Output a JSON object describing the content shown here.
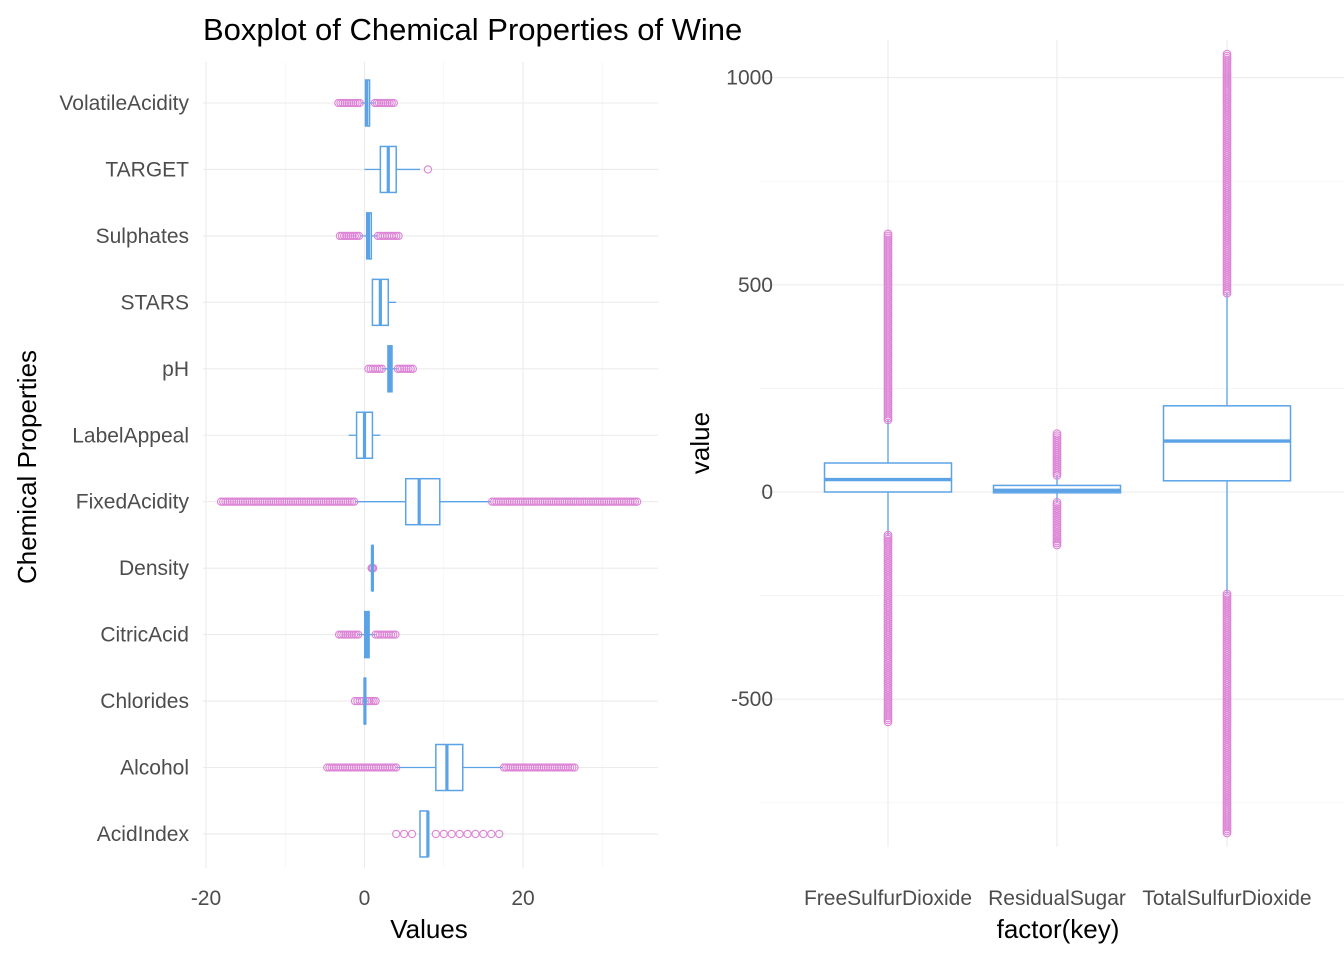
{
  "title": "Boxplot of Chemical Properties of Wine",
  "colors": {
    "box": "#5ba3e6",
    "outlier": "#dd85d6",
    "grid": "#ebebeb"
  },
  "chart_data": [
    {
      "type": "boxplot",
      "orientation": "horizontal",
      "xlabel": "Values",
      "ylabel": "Chemical Properties",
      "xlim": [
        -20,
        35
      ],
      "xticks": [
        -20,
        0,
        20
      ],
      "xtick_labels": [
        "-20",
        "0",
        "20"
      ],
      "grid": true,
      "categories": [
        "VolatileAcidity",
        "TARGET",
        "Sulphates",
        "STARS",
        "pH",
        "LabelAppeal",
        "FixedAcidity",
        "Density",
        "CitricAcid",
        "Chlorides",
        "Alcohol",
        "AcidIndex"
      ],
      "boxes": [
        {
          "name": "VolatileAcidity",
          "q1": 0.13,
          "median": 0.28,
          "q3": 0.64,
          "whisker_low": -0.5,
          "whisker_high": 1.3,
          "outlier_low": [
            -3.3,
            -0.6
          ],
          "outlier_high": [
            1.3,
            3.7
          ]
        },
        {
          "name": "TARGET",
          "q1": 2,
          "median": 3,
          "q3": 4,
          "whisker_low": 0,
          "whisker_high": 7,
          "outlier_points": [
            8
          ]
        },
        {
          "name": "Sulphates",
          "q1": 0.28,
          "median": 0.5,
          "q3": 0.86,
          "whisker_low": -0.6,
          "whisker_high": 1.7,
          "outlier_low": [
            -3.1,
            -0.7
          ],
          "outlier_high": [
            1.7,
            4.3
          ]
        },
        {
          "name": "STARS",
          "q1": 1,
          "median": 2,
          "q3": 3,
          "whisker_low": 1,
          "whisker_high": 4
        },
        {
          "name": "pH",
          "q1": 2.96,
          "median": 3.2,
          "q3": 3.47,
          "whisker_low": 2.2,
          "whisker_high": 4.2,
          "outlier_low": [
            0.5,
            2.2
          ],
          "outlier_high": [
            4.2,
            6.1
          ]
        },
        {
          "name": "LabelAppeal",
          "q1": -1,
          "median": 0,
          "q3": 1,
          "whisker_low": -2,
          "whisker_high": 2
        },
        {
          "name": "FixedAcidity",
          "q1": 5.2,
          "median": 6.9,
          "q3": 9.5,
          "whisker_low": -1.2,
          "whisker_high": 16,
          "outlier_low": [
            -18.1,
            -1.3
          ],
          "outlier_high": [
            16.1,
            34.4
          ]
        },
        {
          "name": "Density",
          "q1": 0.988,
          "median": 0.995,
          "q3": 1.0,
          "whisker_low": 0.96,
          "whisker_high": 1.03,
          "outlier_low": [
            0.89,
            0.96
          ],
          "outlier_high": [
            1.03,
            1.1
          ]
        },
        {
          "name": "CitricAcid",
          "q1": 0.03,
          "median": 0.31,
          "q3": 0.58,
          "whisker_low": -0.8,
          "whisker_high": 1.4,
          "outlier_low": [
            -3.2,
            -0.8
          ],
          "outlier_high": [
            1.4,
            3.9
          ]
        },
        {
          "name": "Chlorides",
          "q1": -0.03,
          "median": 0.05,
          "q3": 0.15,
          "whisker_low": -0.3,
          "whisker_high": 0.4,
          "outlier_low": [
            -1.2,
            -0.3
          ],
          "outlier_high": [
            0.4,
            1.4
          ]
        },
        {
          "name": "Alcohol",
          "q1": 9.0,
          "median": 10.4,
          "q3": 12.4,
          "whisker_low": 4.0,
          "whisker_high": 17.5,
          "outlier_low": [
            -4.7,
            4.0
          ],
          "outlier_high": [
            17.6,
            26.5
          ]
        },
        {
          "name": "AcidIndex",
          "q1": 7,
          "median": 8,
          "q3": 8,
          "whisker_low": 7,
          "whisker_high": 8,
          "outlier_points": [
            4,
            5,
            6,
            9,
            10,
            11,
            12,
            13,
            14,
            15,
            16,
            17
          ]
        }
      ]
    },
    {
      "type": "boxplot",
      "orientation": "vertical",
      "xlabel": "factor(key)",
      "ylabel": "value",
      "ylim": [
        -860,
        1060
      ],
      "yticks": [
        -500,
        0,
        500,
        1000
      ],
      "ytick_labels": [
        "-500",
        "0",
        "500",
        "1000"
      ],
      "grid": true,
      "categories": [
        "FreeSulfurDioxide",
        "ResidualSugar",
        "TotalSulfurDioxide"
      ],
      "boxes": [
        {
          "name": "FreeSulfurDioxide",
          "q1": 0,
          "median": 30,
          "q3": 70,
          "whisker_low": -104,
          "whisker_high": 174,
          "outlier_low": [
            -555,
            -104
          ],
          "outlier_high": [
            174,
            623
          ]
        },
        {
          "name": "ResidualSugar",
          "q1": -2,
          "median": 4,
          "q3": 15.9,
          "whisker_low": -25,
          "whisker_high": 40,
          "outlier_low": [
            -128,
            -25
          ],
          "outlier_high": [
            40,
            141
          ]
        },
        {
          "name": "TotalSulfurDioxide",
          "q1": 27,
          "median": 123,
          "q3": 208,
          "whisker_low": -246,
          "whisker_high": 480,
          "outlier_low": [
            -823,
            -246
          ],
          "outlier_high": [
            480,
            1057
          ]
        }
      ]
    }
  ]
}
